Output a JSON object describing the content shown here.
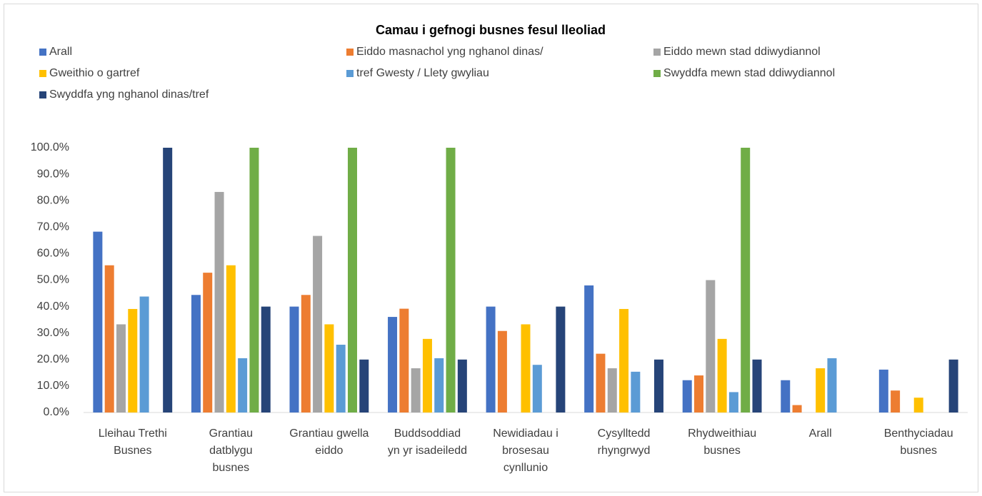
{
  "chart_data": {
    "type": "bar",
    "title": "Camau i gefnogi busnes fesul lleoliad",
    "categories": [
      "Lleihau Trethi Busnes",
      "Grantiau datblygu busnes",
      "Grantiau gwella eiddo",
      "Buddsoddiad yn yr isadeiledd",
      "Newidiadau i brosesau cynllunio",
      "Cysylltedd rhyngrwyd",
      "Rhydweithiau busnes",
      "Arall",
      "Benthyciadau busnes"
    ],
    "series": [
      {
        "name": "Arall",
        "color": "#4472c4",
        "values": [
          68.3,
          44.4,
          40,
          36.1,
          40,
          48,
          12.2,
          12.2,
          16.2
        ]
      },
      {
        "name": "Eiddo masnachol yng nghanol dinas/",
        "color": "#ed7d31",
        "values": [
          55.6,
          52.8,
          44.4,
          39.2,
          30.8,
          22.2,
          14,
          2.8,
          8.3
        ]
      },
      {
        "name": "Eiddo mewn stad ddiwydiannol",
        "color": "#a5a5a5",
        "values": [
          33.3,
          83.3,
          66.7,
          16.7,
          0,
          16.7,
          50,
          0,
          0
        ]
      },
      {
        "name": "Gweithio o gartref",
        "color": "#ffc000",
        "values": [
          39.1,
          55.6,
          33.3,
          27.8,
          33.3,
          39.1,
          27.8,
          16.7,
          5.6
        ]
      },
      {
        "name": "tref Gwesty / Llety gwyliau",
        "color": "#5b9bd5",
        "values": [
          43.8,
          20.5,
          25.6,
          20.5,
          18,
          15.4,
          7.7,
          20.5,
          0
        ]
      },
      {
        "name": "Swyddfa mewn stad ddiwydiannol",
        "color": "#70ad47",
        "values": [
          0,
          100,
          100,
          100,
          0,
          0,
          100,
          0,
          0
        ]
      },
      {
        "name": "Swyddfa yng nghanol dinas/tref",
        "color": "#264478",
        "values": [
          100,
          40,
          20,
          20,
          40,
          20,
          20,
          0,
          20
        ]
      }
    ],
    "ylim": [
      0,
      100
    ],
    "yticks": [
      {
        "value": 0,
        "label": "0.0%"
      },
      {
        "value": 10,
        "label": "10.0%"
      },
      {
        "value": 20,
        "label": "20.0%"
      },
      {
        "value": 30,
        "label": "30.0%"
      },
      {
        "value": 40,
        "label": "40.0%"
      },
      {
        "value": 50,
        "label": "50.0%"
      },
      {
        "value": 60,
        "label": "60.0%"
      },
      {
        "value": 70,
        "label": "70.0%"
      },
      {
        "value": 80,
        "label": "80.0%"
      },
      {
        "value": 90,
        "label": "90.0%"
      },
      {
        "value": 100,
        "label": "100.0%"
      }
    ],
    "grid": false,
    "legend": "top"
  }
}
